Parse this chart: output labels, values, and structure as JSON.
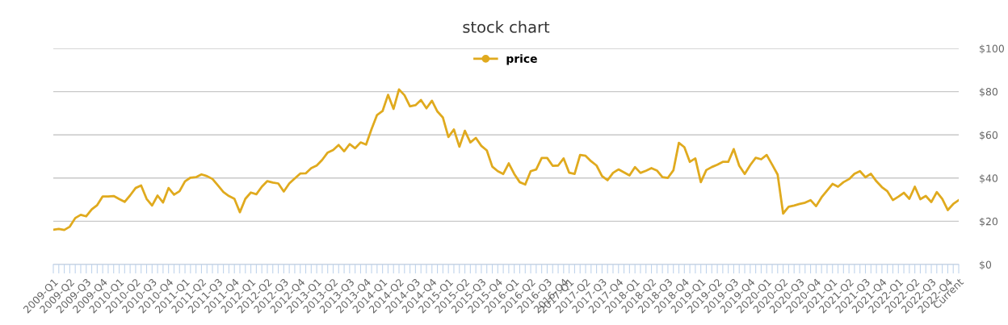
{
  "chart_data": {
    "type": "line",
    "title": "stock chart",
    "categories": [
      "2009-Q1",
      null,
      null,
      "2009-Q2",
      null,
      null,
      "2009-Q3",
      null,
      null,
      "2009-Q4",
      null,
      null,
      "2010-Q1",
      null,
      null,
      "2010-Q2",
      null,
      null,
      "2010-Q3",
      null,
      null,
      "2010-Q4",
      null,
      null,
      "2011-Q1",
      null,
      null,
      "2011-Q2",
      null,
      null,
      "2011-Q3",
      null,
      null,
      "2011-Q4",
      null,
      null,
      "2012-Q1",
      null,
      null,
      "2012-Q2",
      null,
      null,
      "2012-Q3",
      null,
      null,
      "2012-Q4",
      null,
      null,
      "2013-Q1",
      null,
      null,
      "2013-Q2",
      null,
      null,
      "2013-Q3",
      null,
      null,
      "2013-Q4",
      null,
      null,
      "2014-Q1",
      null,
      null,
      "2014-Q2",
      null,
      null,
      "2014-Q3",
      null,
      null,
      "2014-Q4",
      null,
      null,
      "2015-Q1",
      null,
      null,
      "2015-Q2",
      null,
      null,
      "2015-Q3",
      null,
      null,
      "2015-Q4",
      null,
      null,
      "2016-Q1",
      null,
      null,
      "2016-Q2",
      null,
      null,
      "2016-Q3",
      null,
      null,
      "2016-Q4",
      "2017-Q1",
      null,
      null,
      "2017-Q2",
      null,
      null,
      "2017-Q3",
      null,
      null,
      "2017-Q4",
      null,
      null,
      "2018-Q1",
      null,
      null,
      "2018-Q2",
      null,
      null,
      "2018-Q3",
      null,
      null,
      "2018-Q4",
      null,
      null,
      "2019-Q1",
      null,
      null,
      "2019-Q2",
      null,
      null,
      "2019-Q3",
      null,
      null,
      "2019-Q4",
      null,
      null,
      "2020-Q1",
      null,
      null,
      "2020-Q2",
      null,
      null,
      "2020-Q3",
      null,
      null,
      "2020-Q4",
      null,
      null,
      "2021-Q1",
      null,
      null,
      "2021-Q2",
      null,
      null,
      "2021-Q3",
      null,
      null,
      "2021-Q4",
      null,
      null,
      "2022-Q1",
      null,
      null,
      "2022-Q2",
      null,
      null,
      "2022-Q3",
      null,
      null,
      "2022-Q4",
      null,
      "Current"
    ],
    "series": [
      {
        "name": "price",
        "color": "#e0aa1e",
        "values": [
          16.1,
          16.5,
          16.0,
          17.5,
          21.5,
          23.0,
          22.3,
          25.5,
          27.5,
          31.5,
          31.5,
          31.7,
          30.3,
          29.0,
          32.0,
          35.4,
          36.6,
          30.4,
          27.3,
          31.9,
          28.7,
          35.4,
          32.3,
          33.9,
          38.5,
          40.2,
          40.4,
          41.7,
          40.9,
          39.6,
          36.6,
          33.5,
          31.7,
          30.4,
          24.2,
          30.4,
          33.3,
          32.5,
          36.0,
          38.6,
          37.9,
          37.5,
          33.8,
          37.5,
          39.8,
          42.1,
          42.2,
          44.6,
          45.8,
          48.4,
          51.8,
          53.0,
          55.3,
          52.4,
          55.7,
          53.8,
          56.5,
          55.5,
          62.7,
          69.2,
          71.0,
          78.5,
          72.0,
          81.0,
          78.3,
          73.2,
          73.7,
          76.1,
          72.3,
          75.8,
          70.8,
          68.0,
          59.0,
          62.5,
          54.5,
          61.9,
          56.5,
          58.6,
          54.9,
          52.8,
          45.3,
          43.2,
          41.9,
          46.8,
          41.9,
          38.1,
          37.0,
          43.2,
          44.0,
          49.3,
          49.3,
          45.7,
          45.8,
          49.1,
          42.5,
          41.9,
          50.7,
          50.3,
          47.8,
          45.8,
          40.9,
          39.0,
          42.4,
          44.0,
          42.6,
          41.2,
          45.1,
          42.4,
          43.4,
          44.6,
          43.5,
          40.4,
          40.1,
          43.6,
          56.3,
          54.3,
          47.5,
          49.1,
          38.1,
          43.7,
          45.1,
          46.2,
          47.5,
          47.5,
          53.4,
          45.7,
          41.9,
          46.0,
          49.4,
          48.7,
          50.7,
          46.2,
          41.6,
          23.6,
          26.7,
          27.3,
          28.0,
          28.6,
          29.8,
          27.0,
          31.1,
          34.2,
          37.3,
          36.0,
          38.1,
          39.5,
          42.0,
          43.2,
          40.4,
          42.0,
          38.5,
          35.8,
          33.9,
          29.8,
          31.4,
          33.2,
          30.4,
          36.0,
          30.2,
          31.7,
          28.9,
          33.5,
          30.4,
          25.2,
          28.0,
          29.8
        ]
      }
    ],
    "ylim": [
      0,
      100
    ],
    "yticks": [
      {
        "value": 0,
        "label": "$0"
      },
      {
        "value": 20,
        "label": "$20"
      },
      {
        "value": 40,
        "label": "$40"
      },
      {
        "value": 60,
        "label": "$60"
      },
      {
        "value": 80,
        "label": "$80"
      },
      {
        "value": 100,
        "label": "$100"
      }
    ],
    "grid": "y",
    "legend": "top",
    "line_style": "solid"
  }
}
